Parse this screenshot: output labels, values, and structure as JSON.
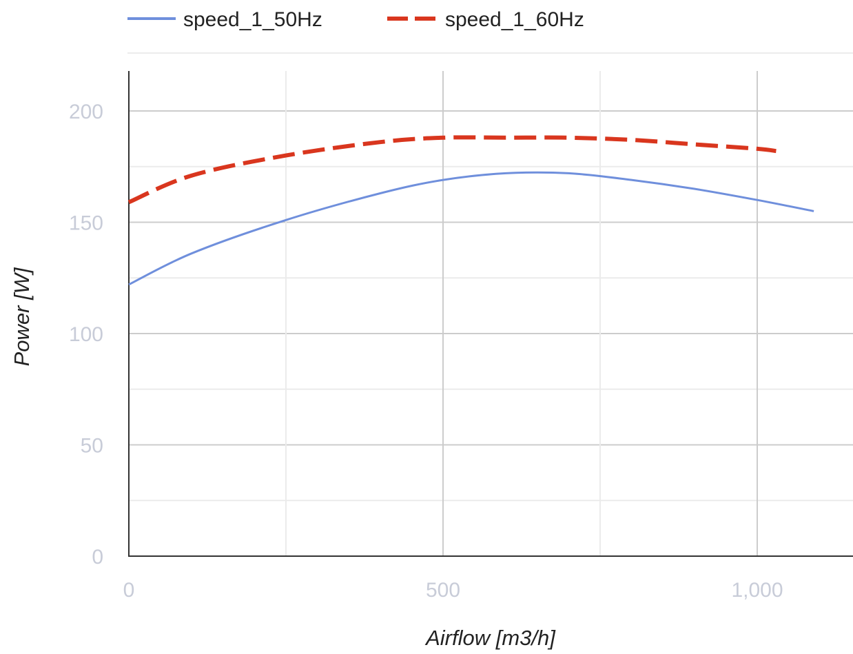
{
  "chart_data": {
    "type": "line",
    "xlabel": "Airflow [m3/h]",
    "ylabel": "Power [W]",
    "xlim": [
      0,
      1130
    ],
    "ylim": [
      0,
      200
    ],
    "x_ticks": [
      {
        "value": 0,
        "label": "0"
      },
      {
        "value": 500,
        "label": "500"
      },
      {
        "value": 1000,
        "label": "1,000"
      }
    ],
    "y_ticks": [
      {
        "value": 0,
        "label": "0"
      },
      {
        "value": 50,
        "label": "50"
      },
      {
        "value": 100,
        "label": "100"
      },
      {
        "value": 150,
        "label": "150"
      },
      {
        "value": 200,
        "label": "200"
      }
    ],
    "grid": true,
    "legend_position": "top",
    "series": [
      {
        "name": "speed_1_50Hz",
        "color": "#6f8fdc",
        "style": "solid",
        "x": [
          0,
          100,
          250,
          400,
          500,
          600,
          700,
          800,
          900,
          1000,
          1090
        ],
        "y": [
          122,
          136,
          151,
          163,
          169,
          172,
          172,
          169,
          165,
          160,
          155
        ]
      },
      {
        "name": "speed_1_60Hz",
        "color": "#d9361e",
        "style": "dashed",
        "x": [
          0,
          100,
          250,
          400,
          500,
          600,
          700,
          800,
          900,
          1000,
          1030
        ],
        "y": [
          159,
          171,
          180,
          186,
          188,
          188,
          188,
          187,
          185,
          183,
          182
        ]
      }
    ]
  }
}
